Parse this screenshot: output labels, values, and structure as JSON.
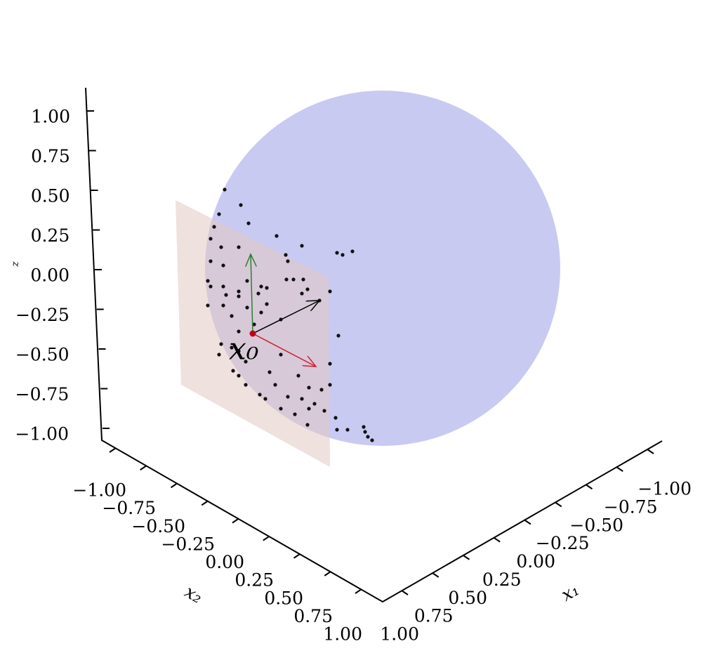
{
  "axes": {
    "z_ticks": [
      "1.00",
      "0.75",
      "0.50",
      "0.25",
      "0.00",
      "−0.25",
      "−0.50",
      "−0.75",
      "−1.00"
    ],
    "x2_ticks": [
      "−1.00",
      "−0.75",
      "−0.50",
      "−0.25",
      "0.00",
      "0.25",
      "0.50",
      "0.75",
      "1.00"
    ],
    "x1_ticks": [
      "−1.00",
      "−0.75",
      "−0.50",
      "−0.25",
      "0.00",
      "0.25",
      "0.50",
      "0.75",
      "1.00"
    ],
    "x1_label": "x₁",
    "x2_label": "x₂",
    "z_label": "z"
  },
  "annotation": "x₀"
}
